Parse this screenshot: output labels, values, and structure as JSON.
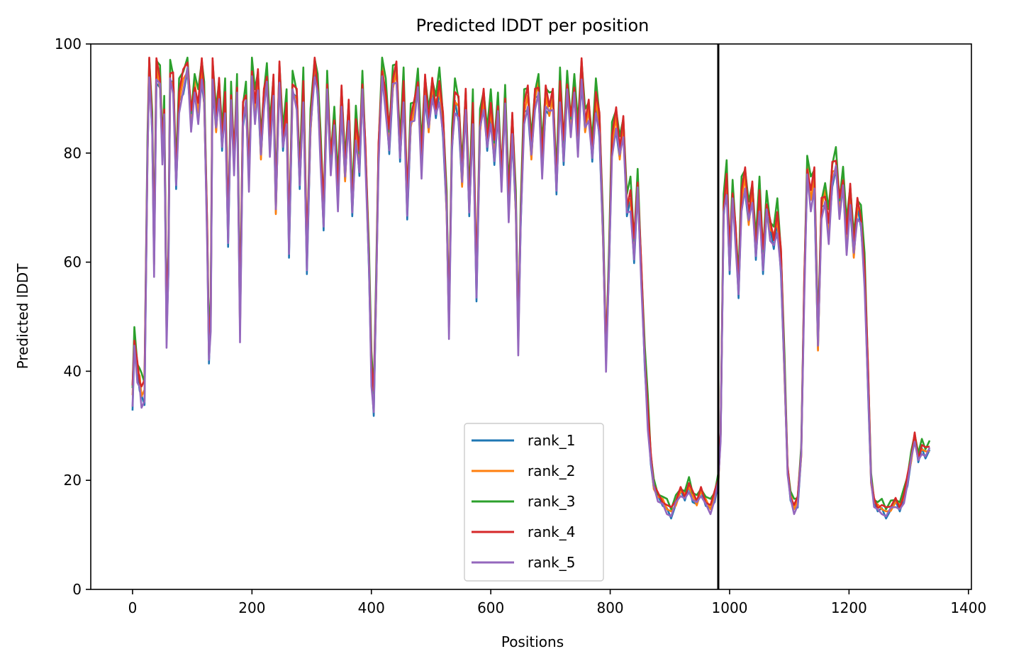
{
  "chart_data": {
    "type": "line",
    "title": "Predicted lDDT per position",
    "xlabel": "Positions",
    "ylabel": "Predicted lDDT",
    "xlim": [
      -70,
      1405
    ],
    "ylim": [
      0,
      100
    ],
    "xticks": [
      0,
      200,
      400,
      600,
      800,
      1000,
      1200,
      1400
    ],
    "yticks": [
      0,
      20,
      40,
      60,
      80,
      100
    ],
    "grid": false,
    "legend_placement": "lower-center",
    "vline_x": 981,
    "series": [
      {
        "name": "rank_1",
        "color": "#1f77b4"
      },
      {
        "name": "rank_2",
        "color": "#ff7f0e"
      },
      {
        "name": "rank_3",
        "color": "#2ca02c"
      },
      {
        "name": "rank_4",
        "color": "#d62728"
      },
      {
        "name": "rank_5",
        "color": "#9467bd"
      }
    ],
    "base_profile": [
      [
        0,
        35
      ],
      [
        3,
        45
      ],
      [
        8,
        40
      ],
      [
        12,
        38
      ],
      [
        15,
        36
      ],
      [
        20,
        36
      ],
      [
        25,
        80
      ],
      [
        28,
        96
      ],
      [
        33,
        85
      ],
      [
        36,
        60
      ],
      [
        40,
        95
      ],
      [
        46,
        93
      ],
      [
        50,
        80
      ],
      [
        53,
        88
      ],
      [
        57,
        47
      ],
      [
        60,
        60
      ],
      [
        63,
        94
      ],
      [
        68,
        93
      ],
      [
        73,
        75
      ],
      [
        78,
        90
      ],
      [
        85,
        93
      ],
      [
        92,
        96
      ],
      [
        98,
        86
      ],
      [
        104,
        92
      ],
      [
        110,
        88
      ],
      [
        116,
        95
      ],
      [
        120,
        90
      ],
      [
        125,
        65
      ],
      [
        128,
        43
      ],
      [
        131,
        50
      ],
      [
        134,
        95
      ],
      [
        140,
        85
      ],
      [
        145,
        92
      ],
      [
        150,
        82
      ],
      [
        155,
        90
      ],
      [
        160,
        65
      ],
      [
        165,
        90
      ],
      [
        170,
        78
      ],
      [
        175,
        92
      ],
      [
        180,
        48
      ],
      [
        185,
        87
      ],
      [
        190,
        90
      ],
      [
        195,
        75
      ],
      [
        200,
        95
      ],
      [
        205,
        88
      ],
      [
        210,
        93
      ],
      [
        215,
        80
      ],
      [
        220,
        90
      ],
      [
        225,
        94
      ],
      [
        230,
        82
      ],
      [
        236,
        92
      ],
      [
        240,
        70
      ],
      [
        246,
        95
      ],
      [
        252,
        82
      ],
      [
        258,
        88
      ],
      [
        262,
        63
      ],
      [
        268,
        92
      ],
      [
        275,
        90
      ],
      [
        280,
        75
      ],
      [
        286,
        92
      ],
      [
        292,
        60
      ],
      [
        298,
        85
      ],
      [
        305,
        96
      ],
      [
        310,
        92
      ],
      [
        315,
        80
      ],
      [
        320,
        68
      ],
      [
        326,
        92
      ],
      [
        332,
        78
      ],
      [
        338,
        86
      ],
      [
        344,
        72
      ],
      [
        350,
        90
      ],
      [
        356,
        76
      ],
      [
        362,
        88
      ],
      [
        368,
        70
      ],
      [
        374,
        85
      ],
      [
        380,
        78
      ],
      [
        385,
        92
      ],
      [
        390,
        80
      ],
      [
        396,
        60
      ],
      [
        400,
        40
      ],
      [
        404,
        34
      ],
      [
        408,
        55
      ],
      [
        412,
        80
      ],
      [
        418,
        95
      ],
      [
        424,
        90
      ],
      [
        430,
        82
      ],
      [
        436,
        93
      ],
      [
        442,
        95
      ],
      [
        448,
        80
      ],
      [
        454,
        92
      ],
      [
        460,
        70
      ],
      [
        466,
        86
      ],
      [
        472,
        88
      ],
      [
        478,
        93
      ],
      [
        484,
        78
      ],
      [
        490,
        92
      ],
      [
        496,
        85
      ],
      [
        502,
        92
      ],
      [
        508,
        88
      ],
      [
        514,
        92
      ],
      [
        520,
        85
      ],
      [
        526,
        70
      ],
      [
        530,
        48
      ],
      [
        535,
        82
      ],
      [
        540,
        90
      ],
      [
        546,
        88
      ],
      [
        552,
        75
      ],
      [
        558,
        90
      ],
      [
        564,
        70
      ],
      [
        570,
        88
      ],
      [
        576,
        55
      ],
      [
        582,
        85
      ],
      [
        588,
        90
      ],
      [
        594,
        82
      ],
      [
        600,
        88
      ],
      [
        606,
        80
      ],
      [
        612,
        88
      ],
      [
        618,
        75
      ],
      [
        624,
        90
      ],
      [
        630,
        70
      ],
      [
        636,
        85
      ],
      [
        642,
        70
      ],
      [
        646,
        45
      ],
      [
        650,
        68
      ],
      [
        656,
        88
      ],
      [
        662,
        90
      ],
      [
        668,
        80
      ],
      [
        674,
        90
      ],
      [
        680,
        92
      ],
      [
        686,
        78
      ],
      [
        692,
        90
      ],
      [
        698,
        88
      ],
      [
        704,
        90
      ],
      [
        710,
        74
      ],
      [
        716,
        92
      ],
      [
        722,
        80
      ],
      [
        728,
        92
      ],
      [
        734,
        85
      ],
      [
        740,
        92
      ],
      [
        746,
        82
      ],
      [
        752,
        95
      ],
      [
        758,
        85
      ],
      [
        764,
        88
      ],
      [
        770,
        80
      ],
      [
        776,
        90
      ],
      [
        782,
        85
      ],
      [
        788,
        65
      ],
      [
        793,
        42
      ],
      [
        798,
        60
      ],
      [
        803,
        82
      ],
      [
        810,
        86
      ],
      [
        816,
        80
      ],
      [
        822,
        85
      ],
      [
        828,
        70
      ],
      [
        834,
        72
      ],
      [
        840,
        62
      ],
      [
        846,
        74
      ],
      [
        852,
        58
      ],
      [
        858,
        42
      ],
      [
        863,
        32
      ],
      [
        868,
        24
      ],
      [
        873,
        19
      ],
      [
        880,
        17
      ],
      [
        888,
        16
      ],
      [
        895,
        15
      ],
      [
        902,
        14
      ],
      [
        910,
        16
      ],
      [
        918,
        18
      ],
      [
        925,
        17
      ],
      [
        932,
        19
      ],
      [
        938,
        17
      ],
      [
        945,
        16
      ],
      [
        952,
        18
      ],
      [
        960,
        16
      ],
      [
        968,
        15
      ],
      [
        975,
        17
      ],
      [
        981,
        20
      ],
      [
        985,
        28
      ],
      [
        990,
        70
      ],
      [
        995,
        75
      ],
      [
        1000,
        60
      ],
      [
        1005,
        72
      ],
      [
        1010,
        65
      ],
      [
        1015,
        55
      ],
      [
        1020,
        72
      ],
      [
        1026,
        75
      ],
      [
        1032,
        68
      ],
      [
        1038,
        73
      ],
      [
        1044,
        62
      ],
      [
        1050,
        72
      ],
      [
        1056,
        60
      ],
      [
        1062,
        70
      ],
      [
        1068,
        66
      ],
      [
        1074,
        64
      ],
      [
        1080,
        68
      ],
      [
        1086,
        60
      ],
      [
        1092,
        40
      ],
      [
        1097,
        22
      ],
      [
        1102,
        17
      ],
      [
        1108,
        15
      ],
      [
        1114,
        16
      ],
      [
        1120,
        25
      ],
      [
        1125,
        55
      ],
      [
        1130,
        77
      ],
      [
        1136,
        72
      ],
      [
        1142,
        75
      ],
      [
        1148,
        45
      ],
      [
        1154,
        70
      ],
      [
        1160,
        72
      ],
      [
        1166,
        66
      ],
      [
        1172,
        76
      ],
      [
        1178,
        78
      ],
      [
        1184,
        70
      ],
      [
        1190,
        75
      ],
      [
        1196,
        64
      ],
      [
        1202,
        72
      ],
      [
        1208,
        62
      ],
      [
        1214,
        70
      ],
      [
        1220,
        68
      ],
      [
        1226,
        58
      ],
      [
        1232,
        38
      ],
      [
        1237,
        20
      ],
      [
        1242,
        16
      ],
      [
        1248,
        15
      ],
      [
        1255,
        15
      ],
      [
        1262,
        14
      ],
      [
        1270,
        15
      ],
      [
        1278,
        16
      ],
      [
        1285,
        15
      ],
      [
        1292,
        17
      ],
      [
        1298,
        20
      ],
      [
        1304,
        24
      ],
      [
        1310,
        28
      ],
      [
        1316,
        24
      ],
      [
        1322,
        26
      ],
      [
        1328,
        25
      ],
      [
        1335,
        26
      ]
    ],
    "series_offsets": [
      -1,
      0,
      2.5,
      1.2,
      -1.5
    ]
  }
}
